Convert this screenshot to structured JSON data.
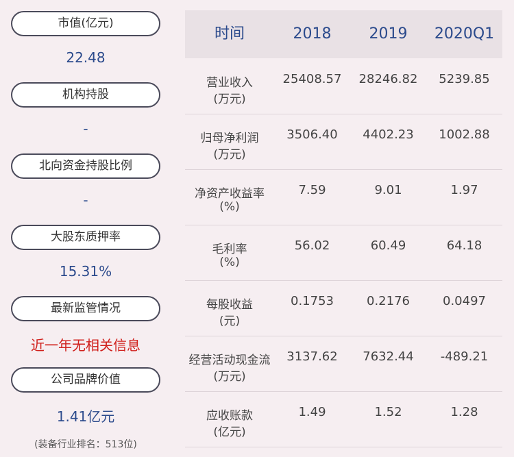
{
  "left": [
    {
      "label": "市值(亿元)",
      "value": "22.48",
      "color": "#2b4a8c"
    },
    {
      "label": "机构持股",
      "value": "-",
      "color": "#2b4a8c"
    },
    {
      "label": "北向资金持股比例",
      "value": "-",
      "color": "#2b4a8c"
    },
    {
      "label": "大股东质押率",
      "value": "15.31%",
      "color": "#2b4a8c"
    },
    {
      "label": "最新监管情况",
      "value": "近一年无相关信息",
      "color": "#d0201c"
    },
    {
      "label": "公司品牌价值",
      "value": "1.41亿元",
      "note": "(装备行业排名：513位)",
      "color": "#2b4a8c"
    }
  ],
  "table": {
    "header": [
      "时间",
      "2018",
      "2019",
      "2020Q1"
    ],
    "rows": [
      {
        "label": "营业收入",
        "unit": "(万元)",
        "values": [
          "25408.57",
          "28246.82",
          "5239.85"
        ]
      },
      {
        "label": "归母净利润",
        "unit": "(万元)",
        "values": [
          "3506.40",
          "4402.23",
          "1002.88"
        ]
      },
      {
        "label": "净资产收益率",
        "unit": "(%)",
        "values": [
          "7.59",
          "9.01",
          "1.97"
        ]
      },
      {
        "label": "毛利率",
        "unit": "(%)",
        "values": [
          "56.02",
          "60.49",
          "64.18"
        ]
      },
      {
        "label": "每股收益",
        "unit": "(元)",
        "values": [
          "0.1753",
          "0.2176",
          "0.0497"
        ]
      },
      {
        "label": "经营活动现金流",
        "unit": "(万元)",
        "values": [
          "3137.62",
          "7632.44",
          "-489.21"
        ]
      },
      {
        "label": "应收账款",
        "unit": "(亿元)",
        "values": [
          "1.49",
          "1.52",
          "1.28"
        ]
      }
    ]
  }
}
